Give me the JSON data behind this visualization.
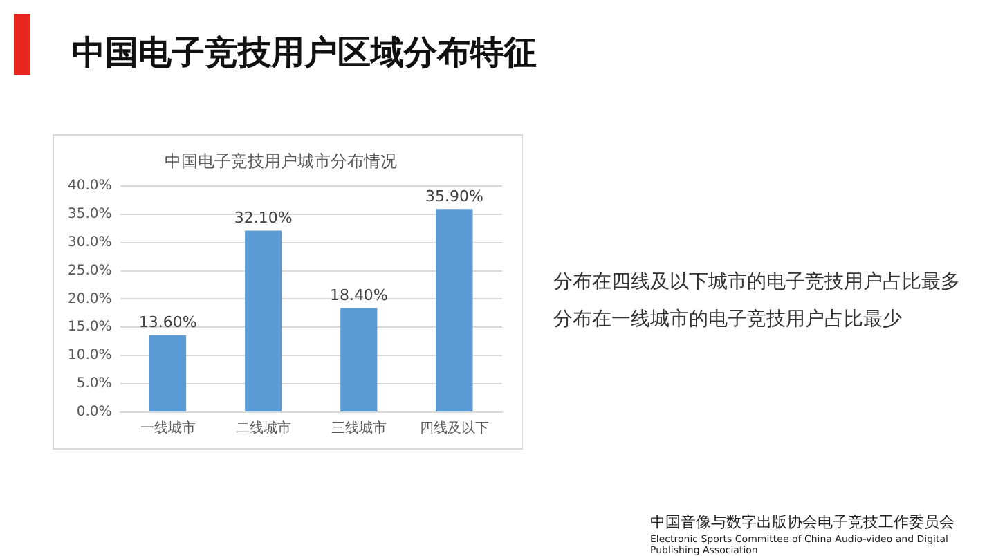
{
  "chart_data": {
    "type": "bar",
    "title": "中国电子竞技用户区域分布特征",
    "subtitle": "中国电子竞技用户城市分布情况",
    "categories": [
      "一线城市",
      "二线城市",
      "三线城市",
      "四线及以下"
    ],
    "values": [
      13.6,
      32.1,
      18.4,
      35.9
    ],
    "value_labels": [
      "13.60%",
      "32.10%",
      "18.40%",
      "35.90%"
    ],
    "color": "#5b9bd5",
    "ylim": [
      0,
      40
    ],
    "yticks": [
      {
        "value": 0,
        "label": "0.0%"
      },
      {
        "value": 5,
        "label": "5.0%"
      },
      {
        "value": 10,
        "label": "10.0%"
      },
      {
        "value": 15,
        "label": "15.0%"
      },
      {
        "value": 20,
        "label": "20.0%"
      },
      {
        "value": 25,
        "label": "25.0%"
      },
      {
        "value": 30,
        "label": "30.0%"
      },
      {
        "value": 35,
        "label": "35.0%"
      },
      {
        "value": 40,
        "label": "40.0%"
      }
    ],
    "grid": "y",
    "annotations": [
      "分布在四线及以下城市的电子竞技用户占比最多",
      "分布在一线城市的电子竞技用户占比最少",
      "中国音像与数字出版协会电子竞技工作委员会",
      "Electronic Sports Committee of China Audio-video and Digital Publishing Association"
    ]
  }
}
